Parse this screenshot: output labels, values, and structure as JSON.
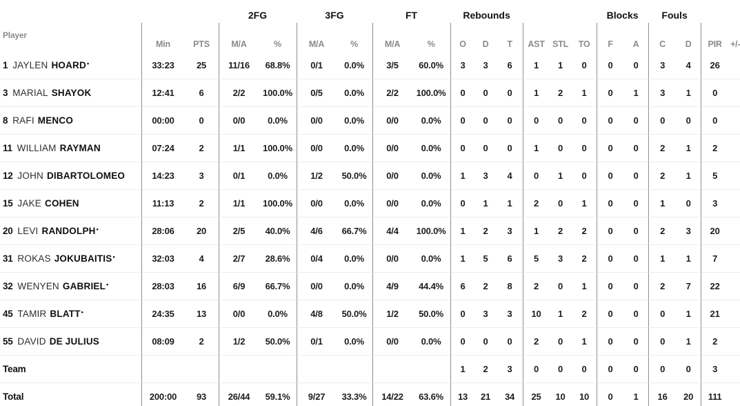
{
  "table": {
    "group_headers": {
      "fg2": "2FG",
      "fg3": "3FG",
      "ft": "FT",
      "rebounds": "Rebounds",
      "blocks": "Blocks",
      "fouls": "Fouls"
    },
    "col_headers": {
      "player": "Player",
      "min": "Min",
      "pts": "PTS",
      "fg2_ma": "M/A",
      "fg2_pct": "%",
      "fg3_ma": "M/A",
      "fg3_pct": "%",
      "ft_ma": "M/A",
      "ft_pct": "%",
      "reb_o": "O",
      "reb_d": "D",
      "reb_t": "T",
      "ast": "AST",
      "stl": "STL",
      "to": "TO",
      "blk_f": "F",
      "blk_a": "A",
      "foul_c": "C",
      "foul_d": "D",
      "pir": "PIR",
      "plusminus": "+/-"
    },
    "column_keys": [
      "min",
      "pts",
      "fg2_ma",
      "fg2_pct",
      "fg3_ma",
      "fg3_pct",
      "ft_ma",
      "ft_pct",
      "reb_o",
      "reb_d",
      "reb_t",
      "ast",
      "stl",
      "to",
      "blk_f",
      "blk_a",
      "foul_c",
      "foul_d",
      "pir",
      "plusminus"
    ],
    "starter_mark": "•",
    "colors": {
      "header_gray": "#8b8b8b",
      "text_black": "#1c1c1c",
      "vertical_line": "#8d8d8d",
      "horizontal_line": "#ececec"
    },
    "rows": [
      {
        "type": "player",
        "num": "1",
        "first": "JAYLEN",
        "last": "HOARD",
        "starter": true,
        "min": "33:23",
        "pts": "25",
        "fg2_ma": "11/16",
        "fg2_pct": "68.8%",
        "fg3_ma": "0/1",
        "fg3_pct": "0.0%",
        "ft_ma": "3/5",
        "ft_pct": "60.0%",
        "reb_o": "3",
        "reb_d": "3",
        "reb_t": "6",
        "ast": "1",
        "stl": "1",
        "to": "0",
        "blk_f": "0",
        "blk_a": "0",
        "foul_c": "3",
        "foul_d": "4",
        "pir": "26"
      },
      {
        "type": "player",
        "num": "3",
        "first": "MARIAL",
        "last": "SHAYOK",
        "starter": false,
        "min": "12:41",
        "pts": "6",
        "fg2_ma": "2/2",
        "fg2_pct": "100.0%",
        "fg3_ma": "0/5",
        "fg3_pct": "0.0%",
        "ft_ma": "2/2",
        "ft_pct": "100.0%",
        "reb_o": "0",
        "reb_d": "0",
        "reb_t": "0",
        "ast": "1",
        "stl": "2",
        "to": "1",
        "blk_f": "0",
        "blk_a": "1",
        "foul_c": "3",
        "foul_d": "1",
        "pir": "0"
      },
      {
        "type": "player",
        "num": "8",
        "first": "RAFI",
        "last": "MENCO",
        "starter": false,
        "min": "00:00",
        "pts": "0",
        "fg2_ma": "0/0",
        "fg2_pct": "0.0%",
        "fg3_ma": "0/0",
        "fg3_pct": "0.0%",
        "ft_ma": "0/0",
        "ft_pct": "0.0%",
        "reb_o": "0",
        "reb_d": "0",
        "reb_t": "0",
        "ast": "0",
        "stl": "0",
        "to": "0",
        "blk_f": "0",
        "blk_a": "0",
        "foul_c": "0",
        "foul_d": "0",
        "pir": "0"
      },
      {
        "type": "player",
        "num": "11",
        "first": "WILLIAM",
        "last": "RAYMAN",
        "starter": false,
        "min": "07:24",
        "pts": "2",
        "fg2_ma": "1/1",
        "fg2_pct": "100.0%",
        "fg3_ma": "0/0",
        "fg3_pct": "0.0%",
        "ft_ma": "0/0",
        "ft_pct": "0.0%",
        "reb_o": "0",
        "reb_d": "0",
        "reb_t": "0",
        "ast": "1",
        "stl": "0",
        "to": "0",
        "blk_f": "0",
        "blk_a": "0",
        "foul_c": "2",
        "foul_d": "1",
        "pir": "2"
      },
      {
        "type": "player",
        "num": "12",
        "first": "JOHN",
        "last": "DIBARTOLOMEO",
        "starter": false,
        "min": "14:23",
        "pts": "3",
        "fg2_ma": "0/1",
        "fg2_pct": "0.0%",
        "fg3_ma": "1/2",
        "fg3_pct": "50.0%",
        "ft_ma": "0/0",
        "ft_pct": "0.0%",
        "reb_o": "1",
        "reb_d": "3",
        "reb_t": "4",
        "ast": "0",
        "stl": "1",
        "to": "0",
        "blk_f": "0",
        "blk_a": "0",
        "foul_c": "2",
        "foul_d": "1",
        "pir": "5"
      },
      {
        "type": "player",
        "num": "15",
        "first": "JAKE",
        "last": "COHEN",
        "starter": false,
        "min": "11:13",
        "pts": "2",
        "fg2_ma": "1/1",
        "fg2_pct": "100.0%",
        "fg3_ma": "0/0",
        "fg3_pct": "0.0%",
        "ft_ma": "0/0",
        "ft_pct": "0.0%",
        "reb_o": "0",
        "reb_d": "1",
        "reb_t": "1",
        "ast": "2",
        "stl": "0",
        "to": "1",
        "blk_f": "0",
        "blk_a": "0",
        "foul_c": "1",
        "foul_d": "0",
        "pir": "3"
      },
      {
        "type": "player",
        "num": "20",
        "first": "LEVI",
        "last": "RANDOLPH",
        "starter": true,
        "min": "28:06",
        "pts": "20",
        "fg2_ma": "2/5",
        "fg2_pct": "40.0%",
        "fg3_ma": "4/6",
        "fg3_pct": "66.7%",
        "ft_ma": "4/4",
        "ft_pct": "100.0%",
        "reb_o": "1",
        "reb_d": "2",
        "reb_t": "3",
        "ast": "1",
        "stl": "2",
        "to": "2",
        "blk_f": "0",
        "blk_a": "0",
        "foul_c": "2",
        "foul_d": "3",
        "pir": "20"
      },
      {
        "type": "player",
        "num": "31",
        "first": "ROKAS",
        "last": "JOKUBAITIS",
        "starter": true,
        "min": "32:03",
        "pts": "4",
        "fg2_ma": "2/7",
        "fg2_pct": "28.6%",
        "fg3_ma": "0/4",
        "fg3_pct": "0.0%",
        "ft_ma": "0/0",
        "ft_pct": "0.0%",
        "reb_o": "1",
        "reb_d": "5",
        "reb_t": "6",
        "ast": "5",
        "stl": "3",
        "to": "2",
        "blk_f": "0",
        "blk_a": "0",
        "foul_c": "1",
        "foul_d": "1",
        "pir": "7"
      },
      {
        "type": "player",
        "num": "32",
        "first": "WENYEN",
        "last": "GABRIEL",
        "starter": true,
        "min": "28:03",
        "pts": "16",
        "fg2_ma": "6/9",
        "fg2_pct": "66.7%",
        "fg3_ma": "0/0",
        "fg3_pct": "0.0%",
        "ft_ma": "4/9",
        "ft_pct": "44.4%",
        "reb_o": "6",
        "reb_d": "2",
        "reb_t": "8",
        "ast": "2",
        "stl": "0",
        "to": "1",
        "blk_f": "0",
        "blk_a": "0",
        "foul_c": "2",
        "foul_d": "7",
        "pir": "22"
      },
      {
        "type": "player",
        "num": "45",
        "first": "TAMIR",
        "last": "BLATT",
        "starter": true,
        "min": "24:35",
        "pts": "13",
        "fg2_ma": "0/0",
        "fg2_pct": "0.0%",
        "fg3_ma": "4/8",
        "fg3_pct": "50.0%",
        "ft_ma": "1/2",
        "ft_pct": "50.0%",
        "reb_o": "0",
        "reb_d": "3",
        "reb_t": "3",
        "ast": "10",
        "stl": "1",
        "to": "2",
        "blk_f": "0",
        "blk_a": "0",
        "foul_c": "0",
        "foul_d": "1",
        "pir": "21"
      },
      {
        "type": "player",
        "num": "55",
        "first": "DAVID",
        "last": "DE JULIUS",
        "starter": false,
        "min": "08:09",
        "pts": "2",
        "fg2_ma": "1/2",
        "fg2_pct": "50.0%",
        "fg3_ma": "0/1",
        "fg3_pct": "0.0%",
        "ft_ma": "0/0",
        "ft_pct": "0.0%",
        "reb_o": "0",
        "reb_d": "0",
        "reb_t": "0",
        "ast": "2",
        "stl": "0",
        "to": "1",
        "blk_f": "0",
        "blk_a": "0",
        "foul_c": "0",
        "foul_d": "1",
        "pir": "2"
      },
      {
        "type": "team",
        "label": "Team",
        "min": "",
        "pts": "",
        "fg2_ma": "",
        "fg2_pct": "",
        "fg3_ma": "",
        "fg3_pct": "",
        "ft_ma": "",
        "ft_pct": "",
        "reb_o": "1",
        "reb_d": "2",
        "reb_t": "3",
        "ast": "0",
        "stl": "0",
        "to": "0",
        "blk_f": "0",
        "blk_a": "0",
        "foul_c": "0",
        "foul_d": "0",
        "pir": "3"
      },
      {
        "type": "total",
        "label": "Total",
        "min": "200:00",
        "pts": "93",
        "fg2_ma": "26/44",
        "fg2_pct": "59.1%",
        "fg3_ma": "9/27",
        "fg3_pct": "33.3%",
        "ft_ma": "14/22",
        "ft_pct": "63.6%",
        "reb_o": "13",
        "reb_d": "21",
        "reb_t": "34",
        "ast": "25",
        "stl": "10",
        "to": "10",
        "blk_f": "0",
        "blk_a": "1",
        "foul_c": "16",
        "foul_d": "20",
        "pir": "111"
      }
    ]
  }
}
